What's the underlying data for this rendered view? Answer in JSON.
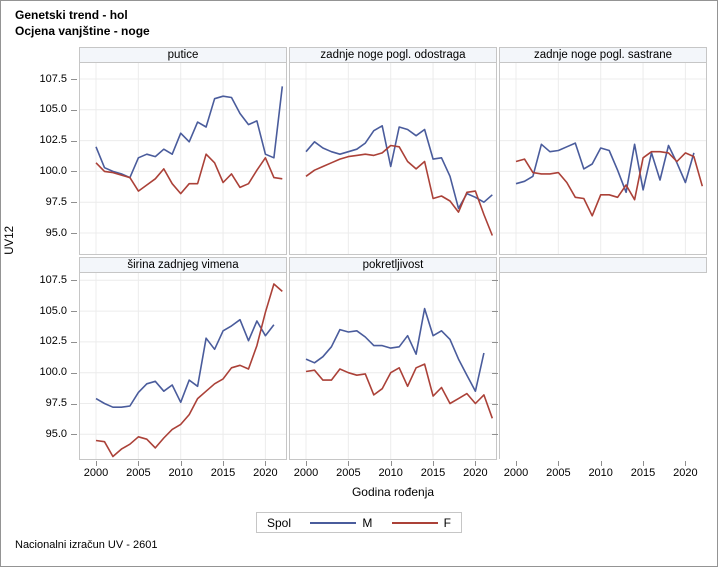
{
  "header": {
    "title1": "Genetski trend - hol",
    "title2": "Ocjena vanjštine - noge"
  },
  "axes": {
    "y_label": "UV12",
    "x_label": "Godina rođenja",
    "y_ticks": [
      107.5,
      105.0,
      102.5,
      100.0,
      97.5,
      95.0
    ],
    "x_ticks": [
      2000,
      2005,
      2010,
      2015,
      2020
    ],
    "x_range": [
      2000,
      2022
    ],
    "grid": true
  },
  "legend": {
    "title": "Spol",
    "items": [
      {
        "label": "M",
        "color": "#4a5c9c"
      },
      {
        "label": "F",
        "color": "#ab4138"
      }
    ],
    "position": "bottom"
  },
  "footer": {
    "note": "Nacionalni izračun UV - 2601"
  },
  "colors": {
    "male": "#4a5c9c",
    "female": "#ab4138",
    "grid": "#ececec",
    "panel_border": "#c6c6c6",
    "header_bg": "#f3f6fa",
    "tick": "#8f8f8f"
  },
  "chart_data": {
    "type": "line",
    "title": "Genetski trend - hol / Ocjena vanjštine - noge",
    "xlabel": "Godina rođenja",
    "ylabel": "UV12",
    "ylim_approx": [
      93.3,
      108.8
    ],
    "years": [
      2000,
      2001,
      2002,
      2003,
      2004,
      2005,
      2006,
      2007,
      2008,
      2009,
      2010,
      2011,
      2012,
      2013,
      2014,
      2015,
      2016,
      2017,
      2018,
      2019,
      2020,
      2021,
      2022
    ],
    "panels": [
      {
        "label": "putice",
        "series": [
          {
            "name": "M",
            "values": [
              102.0,
              100.3,
              100.0,
              99.8,
              99.5,
              101.1,
              101.4,
              101.2,
              101.8,
              101.4,
              103.1,
              102.4,
              104.0,
              103.6,
              105.9,
              106.1,
              106.0,
              104.7,
              103.8,
              104.1,
              101.4,
              101.1,
              106.9
            ]
          },
          {
            "name": "F",
            "values": [
              100.7,
              100.0,
              99.9,
              99.7,
              99.5,
              98.4,
              98.9,
              99.4,
              100.2,
              99.0,
              98.2,
              99.0,
              99.0,
              101.4,
              100.7,
              99.1,
              99.8,
              98.7,
              99.0,
              100.1,
              101.1,
              99.5,
              99.4
            ]
          }
        ]
      },
      {
        "label": "zadnje noge pogl. odostraga",
        "series": [
          {
            "name": "M",
            "values": [
              101.6,
              102.4,
              101.9,
              101.6,
              101.4,
              101.6,
              101.8,
              102.3,
              103.3,
              103.7,
              100.4,
              103.6,
              103.4,
              102.9,
              103.4,
              101.0,
              101.1,
              99.6,
              97.0,
              98.2,
              97.9,
              97.5,
              98.1
            ]
          },
          {
            "name": "F",
            "values": [
              99.6,
              100.1,
              100.4,
              100.7,
              101.0,
              101.2,
              101.3,
              101.4,
              101.3,
              101.5,
              102.1,
              102.0,
              100.8,
              100.2,
              100.8,
              97.8,
              98.0,
              97.6,
              96.7,
              98.3,
              98.4,
              96.5,
              94.8
            ]
          }
        ]
      },
      {
        "label": "zadnje noge pogl. sastrane",
        "series": [
          {
            "name": "M",
            "values": [
              99.0,
              99.2,
              99.6,
              102.2,
              101.6,
              101.7,
              102.0,
              102.3,
              100.2,
              100.6,
              101.9,
              101.7,
              100.1,
              98.3,
              102.2,
              98.5,
              101.5,
              99.3,
              102.1,
              100.7,
              99.1,
              101.5,
              null
            ]
          },
          {
            "name": "F",
            "values": [
              100.8,
              101.0,
              99.9,
              99.8,
              99.8,
              99.9,
              99.1,
              97.9,
              97.8,
              96.4,
              98.1,
              98.1,
              97.9,
              98.9,
              97.7,
              101.1,
              101.6,
              101.6,
              101.5,
              100.8,
              101.5,
              101.2,
              98.8
            ]
          }
        ]
      },
      {
        "label": "širina zadnjeg vimena",
        "series": [
          {
            "name": "M",
            "values": [
              97.9,
              97.5,
              97.2,
              97.2,
              97.3,
              98.4,
              99.1,
              99.3,
              98.5,
              99.0,
              97.6,
              99.4,
              98.9,
              102.8,
              101.9,
              103.4,
              103.8,
              104.3,
              102.6,
              104.2,
              103.0,
              103.9,
              null
            ]
          },
          {
            "name": "F",
            "values": [
              94.5,
              94.4,
              93.2,
              93.8,
              94.2,
              94.8,
              94.6,
              93.9,
              94.7,
              95.4,
              95.8,
              96.6,
              97.9,
              98.5,
              99.1,
              99.5,
              100.4,
              100.6,
              100.3,
              102.2,
              104.9,
              107.2,
              106.6
            ]
          }
        ]
      },
      {
        "label": "pokretljivost",
        "series": [
          {
            "name": "M",
            "values": [
              101.1,
              100.8,
              101.3,
              102.1,
              103.5,
              103.3,
              103.4,
              102.9,
              102.2,
              102.2,
              102.0,
              102.1,
              103.0,
              101.5,
              105.2,
              103.0,
              103.4,
              102.7,
              101.1,
              99.8,
              98.5,
              101.6,
              null
            ]
          },
          {
            "name": "F",
            "values": [
              100.1,
              100.2,
              99.4,
              99.4,
              100.3,
              100.0,
              99.8,
              99.9,
              98.2,
              98.7,
              100.0,
              100.4,
              98.9,
              100.4,
              100.7,
              98.1,
              98.8,
              97.5,
              97.9,
              98.3,
              97.5,
              98.2,
              96.3
            ]
          }
        ]
      }
    ]
  }
}
